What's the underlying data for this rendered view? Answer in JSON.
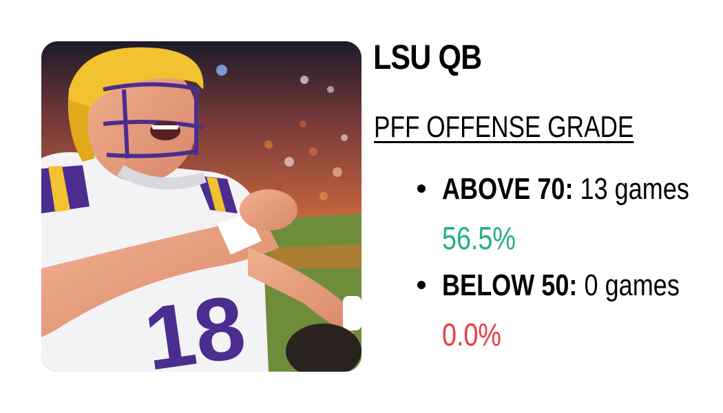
{
  "title": "LSU QB",
  "subtitle": "PFF OFFENSE GRADE",
  "stats": [
    {
      "label": "ABOVE 70:",
      "value": "13 games",
      "percent": "56.5%",
      "color": "#22b07d"
    },
    {
      "label": "BELOW 50:",
      "value": "0 games",
      "percent": "0.0%",
      "color": "#ef3b3b"
    }
  ],
  "photo": {
    "jersey_number": "18",
    "colors": {
      "gold": "#f2c230",
      "purple": "#4b2d8f",
      "white": "#f5f5f7"
    }
  }
}
